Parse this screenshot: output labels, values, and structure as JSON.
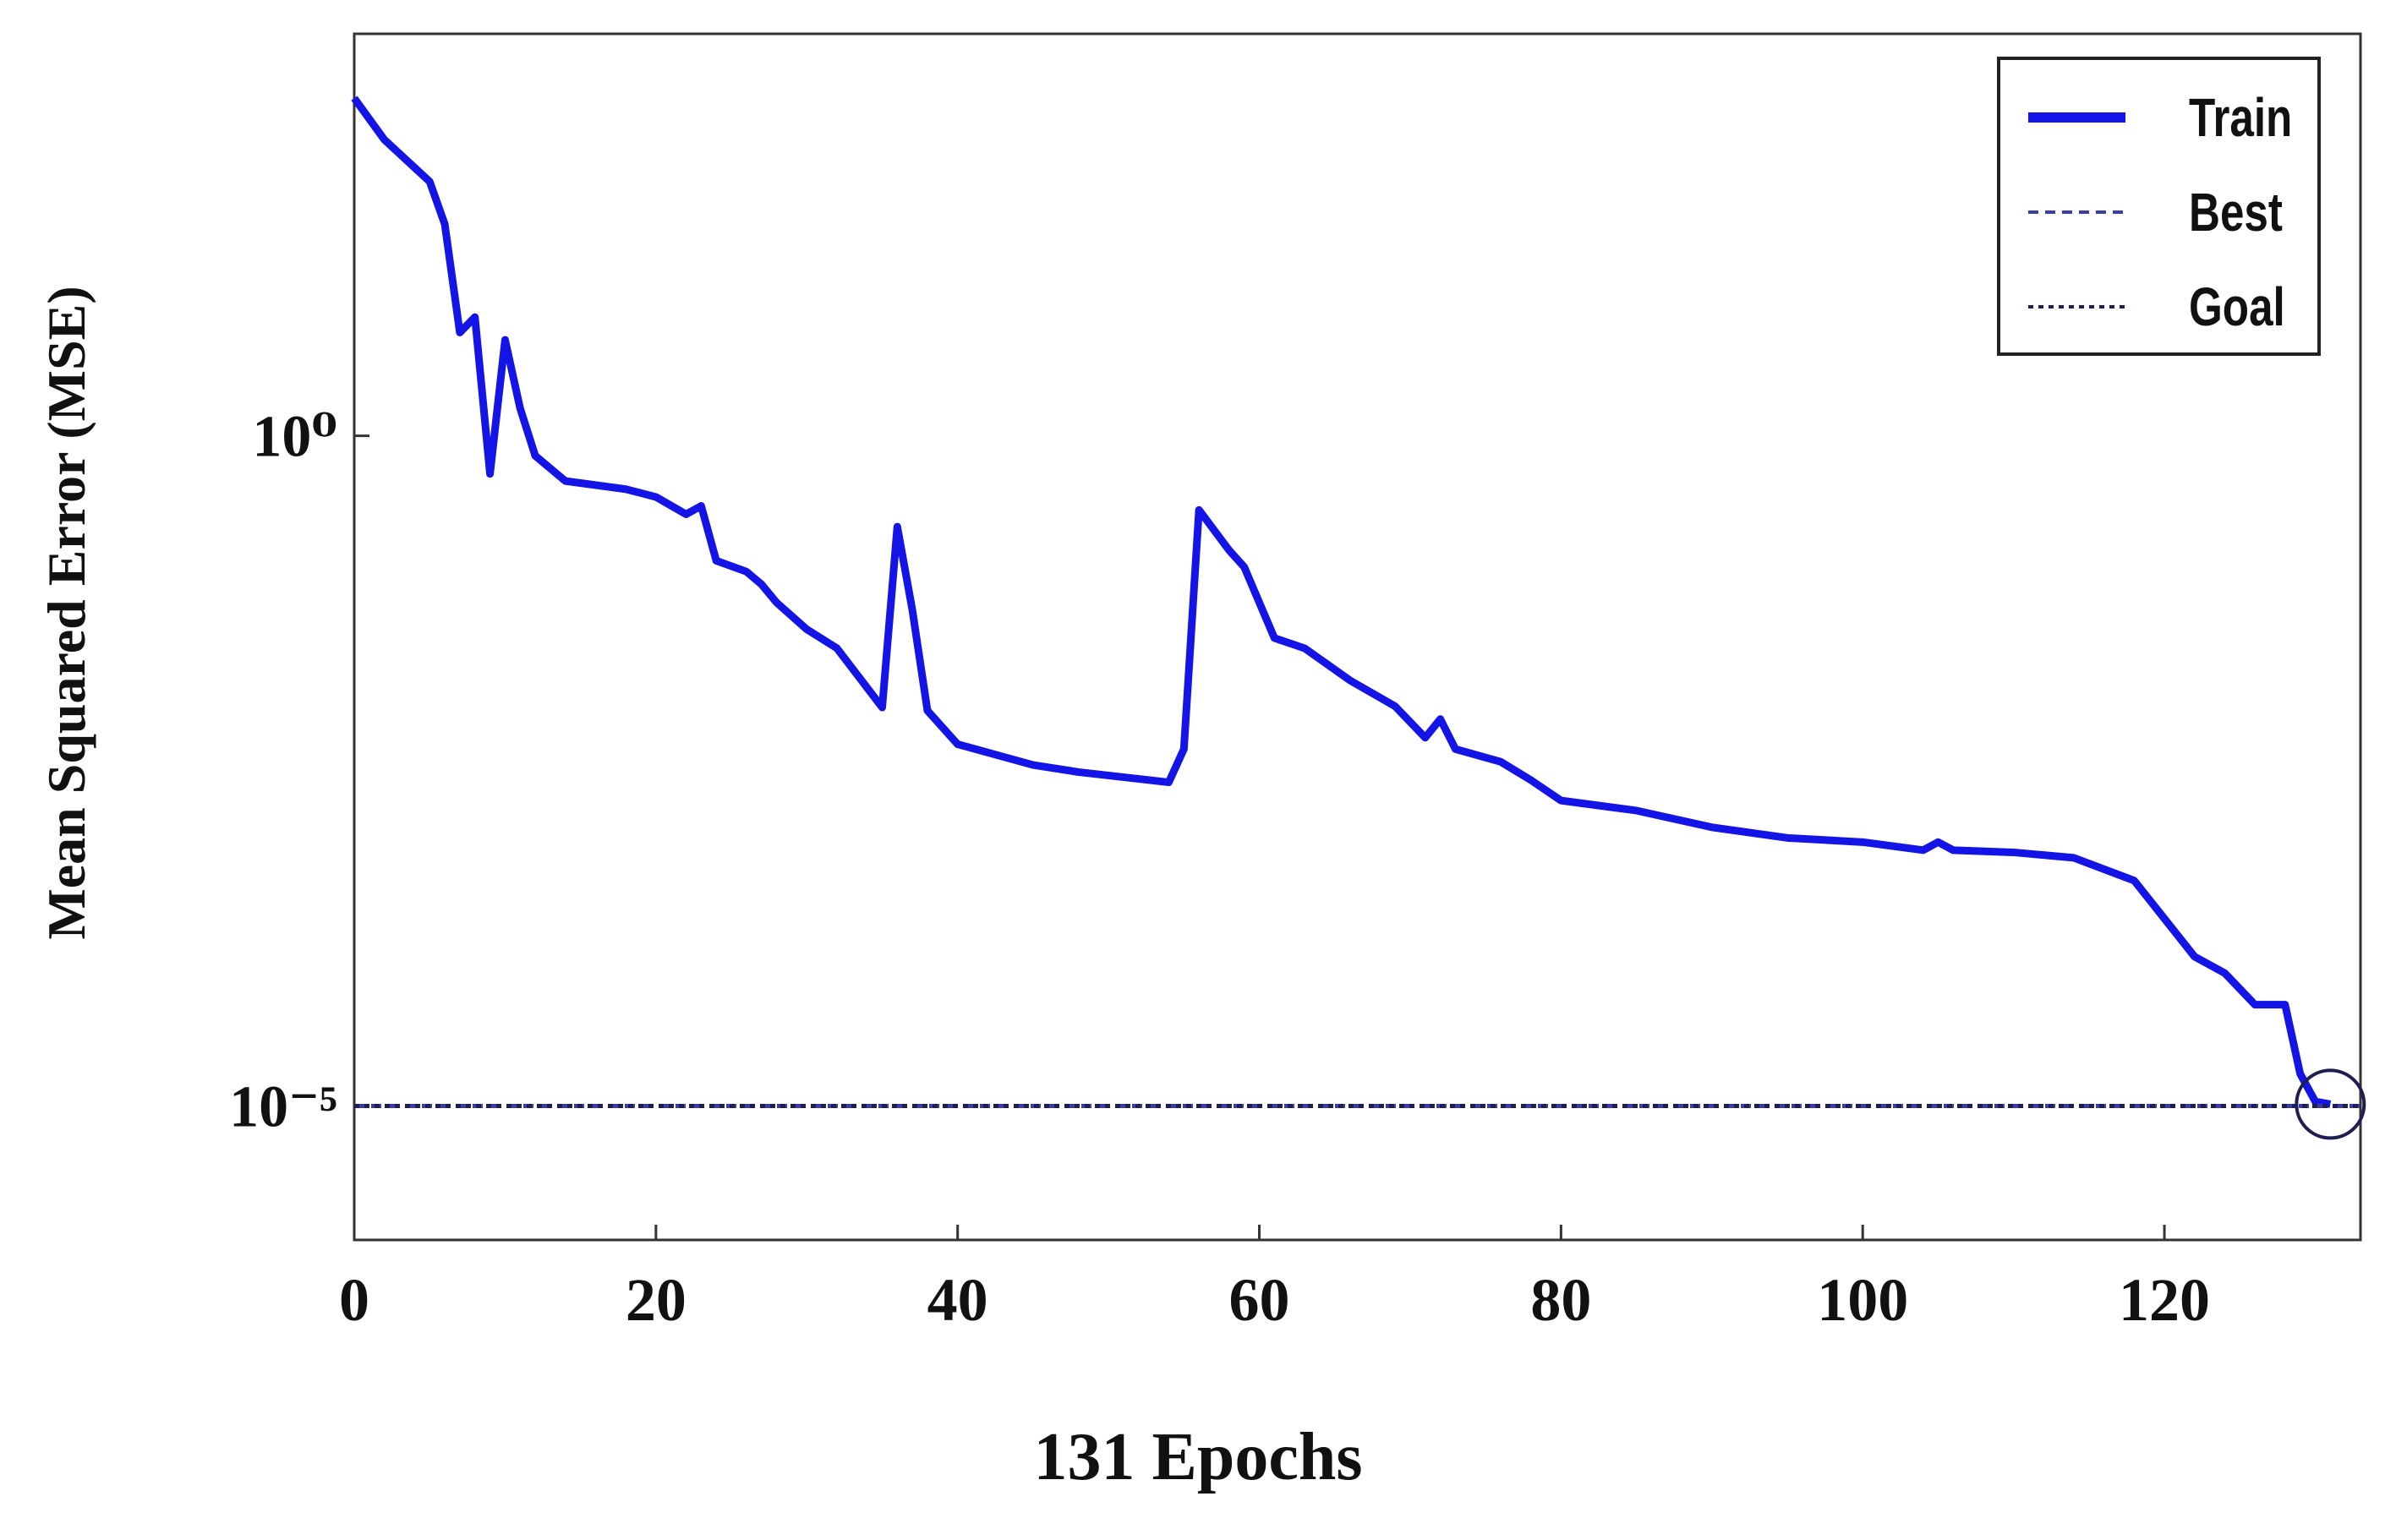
{
  "chart_data": {
    "type": "line",
    "xlabel": "131 Epochs",
    "ylabel": "Mean Squared Error (MSE)",
    "yscale": "log",
    "xlim": [
      0,
      133
    ],
    "ylim": [
      1e-06,
      1000
    ],
    "xticks": [
      0,
      20,
      40,
      60,
      80,
      100,
      120
    ],
    "yticks": [
      {
        "value": 1,
        "label": "10⁰"
      },
      {
        "value": 1e-05,
        "label": "10⁻⁵"
      }
    ],
    "legend": "upper right",
    "series": [
      {
        "name": "Train",
        "color": "#1414e6",
        "style": "solid",
        "x": [
          0,
          2,
          5,
          6,
          7,
          8,
          9,
          10,
          11,
          12,
          14,
          18,
          20,
          22,
          23,
          24,
          26,
          27,
          28,
          30,
          32,
          35,
          36,
          37,
          38,
          40,
          45,
          48,
          54,
          55,
          56,
          58,
          59,
          61,
          63,
          66,
          69,
          71,
          72,
          73,
          76,
          78,
          80,
          85,
          90,
          95,
          100,
          104,
          105,
          106,
          110,
          114,
          118,
          120,
          122,
          124,
          126,
          128,
          129,
          130,
          131
        ],
        "values": [
          331,
          162,
          79,
          38,
          5.9,
          7.7,
          0.52,
          5.2,
          1.6,
          0.71,
          0.46,
          0.4,
          0.35,
          0.26,
          0.3,
          0.117,
          0.097,
          0.078,
          0.057,
          0.036,
          0.026,
          0.0094,
          0.21,
          0.05,
          0.0089,
          0.005,
          0.0035,
          0.0031,
          0.0026,
          0.0046,
          0.28,
          0.14,
          0.105,
          0.031,
          0.026,
          0.015,
          0.0096,
          0.0056,
          0.0077,
          0.0046,
          0.0037,
          0.0027,
          0.0019,
          0.0016,
          0.0012,
          0.001,
          0.00093,
          0.00081,
          0.00093,
          0.00081,
          0.00078,
          0.00071,
          0.00048,
          0.00025,
          0.00013,
          9.8e-05,
          5.7e-05,
          5.7e-05,
          1.74e-05,
          1.08e-05,
          1.03e-05
        ]
      },
      {
        "name": "Best",
        "color": "#3c3ca8",
        "style": "dashed",
        "value": 1e-05
      },
      {
        "name": "Goal",
        "color": "#1e1e50",
        "style": "dotted",
        "value": 1e-05
      }
    ]
  }
}
